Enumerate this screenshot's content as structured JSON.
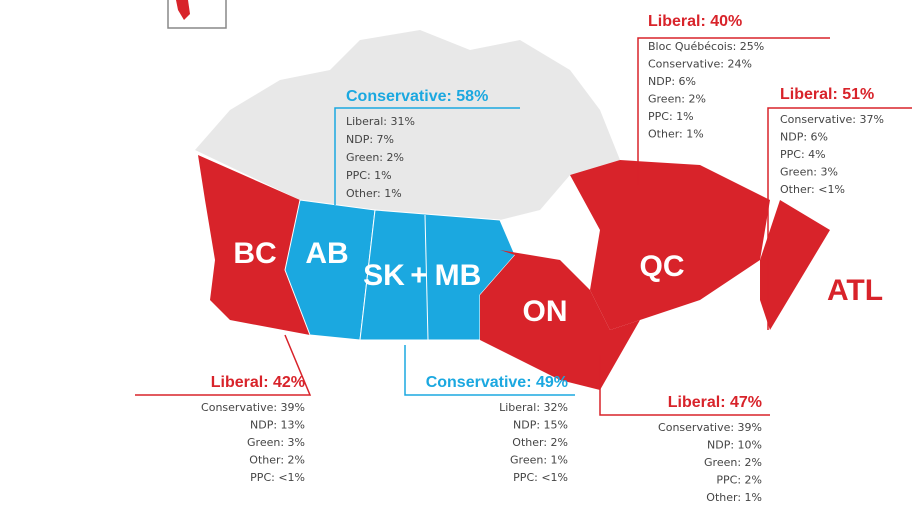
{
  "map_labels": [
    "BC",
    "AB",
    "SK",
    "+",
    "MB",
    "ON",
    "QC",
    "ATL"
  ],
  "callouts": [
    {
      "headline": "Conservative: 58%",
      "color": "#1ba8e0",
      "lines": [
        "Liberal: 31%",
        "NDP: 7%",
        "Green: 2%",
        "PPC: 1%",
        "Other: 1%"
      ]
    },
    {
      "headline": "Liberal: 40%",
      "color": "#d8232a",
      "lines": [
        "Bloc Québécois: 25%",
        "Conservative: 24%",
        "NDP: 6%",
        "Green: 2%",
        "PPC: 1%",
        "Other: 1%"
      ]
    },
    {
      "headline": "Liberal: 51%",
      "color": "#d8232a",
      "lines": [
        "Conservative: 37%",
        "NDP: 6%",
        "PPC: 4%",
        "Green: 3%",
        "Other: <1%"
      ]
    },
    {
      "headline": "Liberal: 42%",
      "color": "#d8232a",
      "lines": [
        "Conservative: 39%",
        "NDP: 13%",
        "Green: 3%",
        "Other: 2%",
        "PPC: <1%"
      ]
    },
    {
      "headline": "Conservative: 49%",
      "color": "#1ba8e0",
      "lines": [
        "Liberal: 32%",
        "NDP: 15%",
        "Other: 2%",
        "Green: 1%",
        "PPC: <1%"
      ]
    },
    {
      "headline": "Liberal: 47%",
      "color": "#d8232a",
      "lines": [
        "Conservative: 39%",
        "NDP: 10%",
        "Green: 2%",
        "PPC: 2%",
        "Other: 1%"
      ]
    }
  ]
}
